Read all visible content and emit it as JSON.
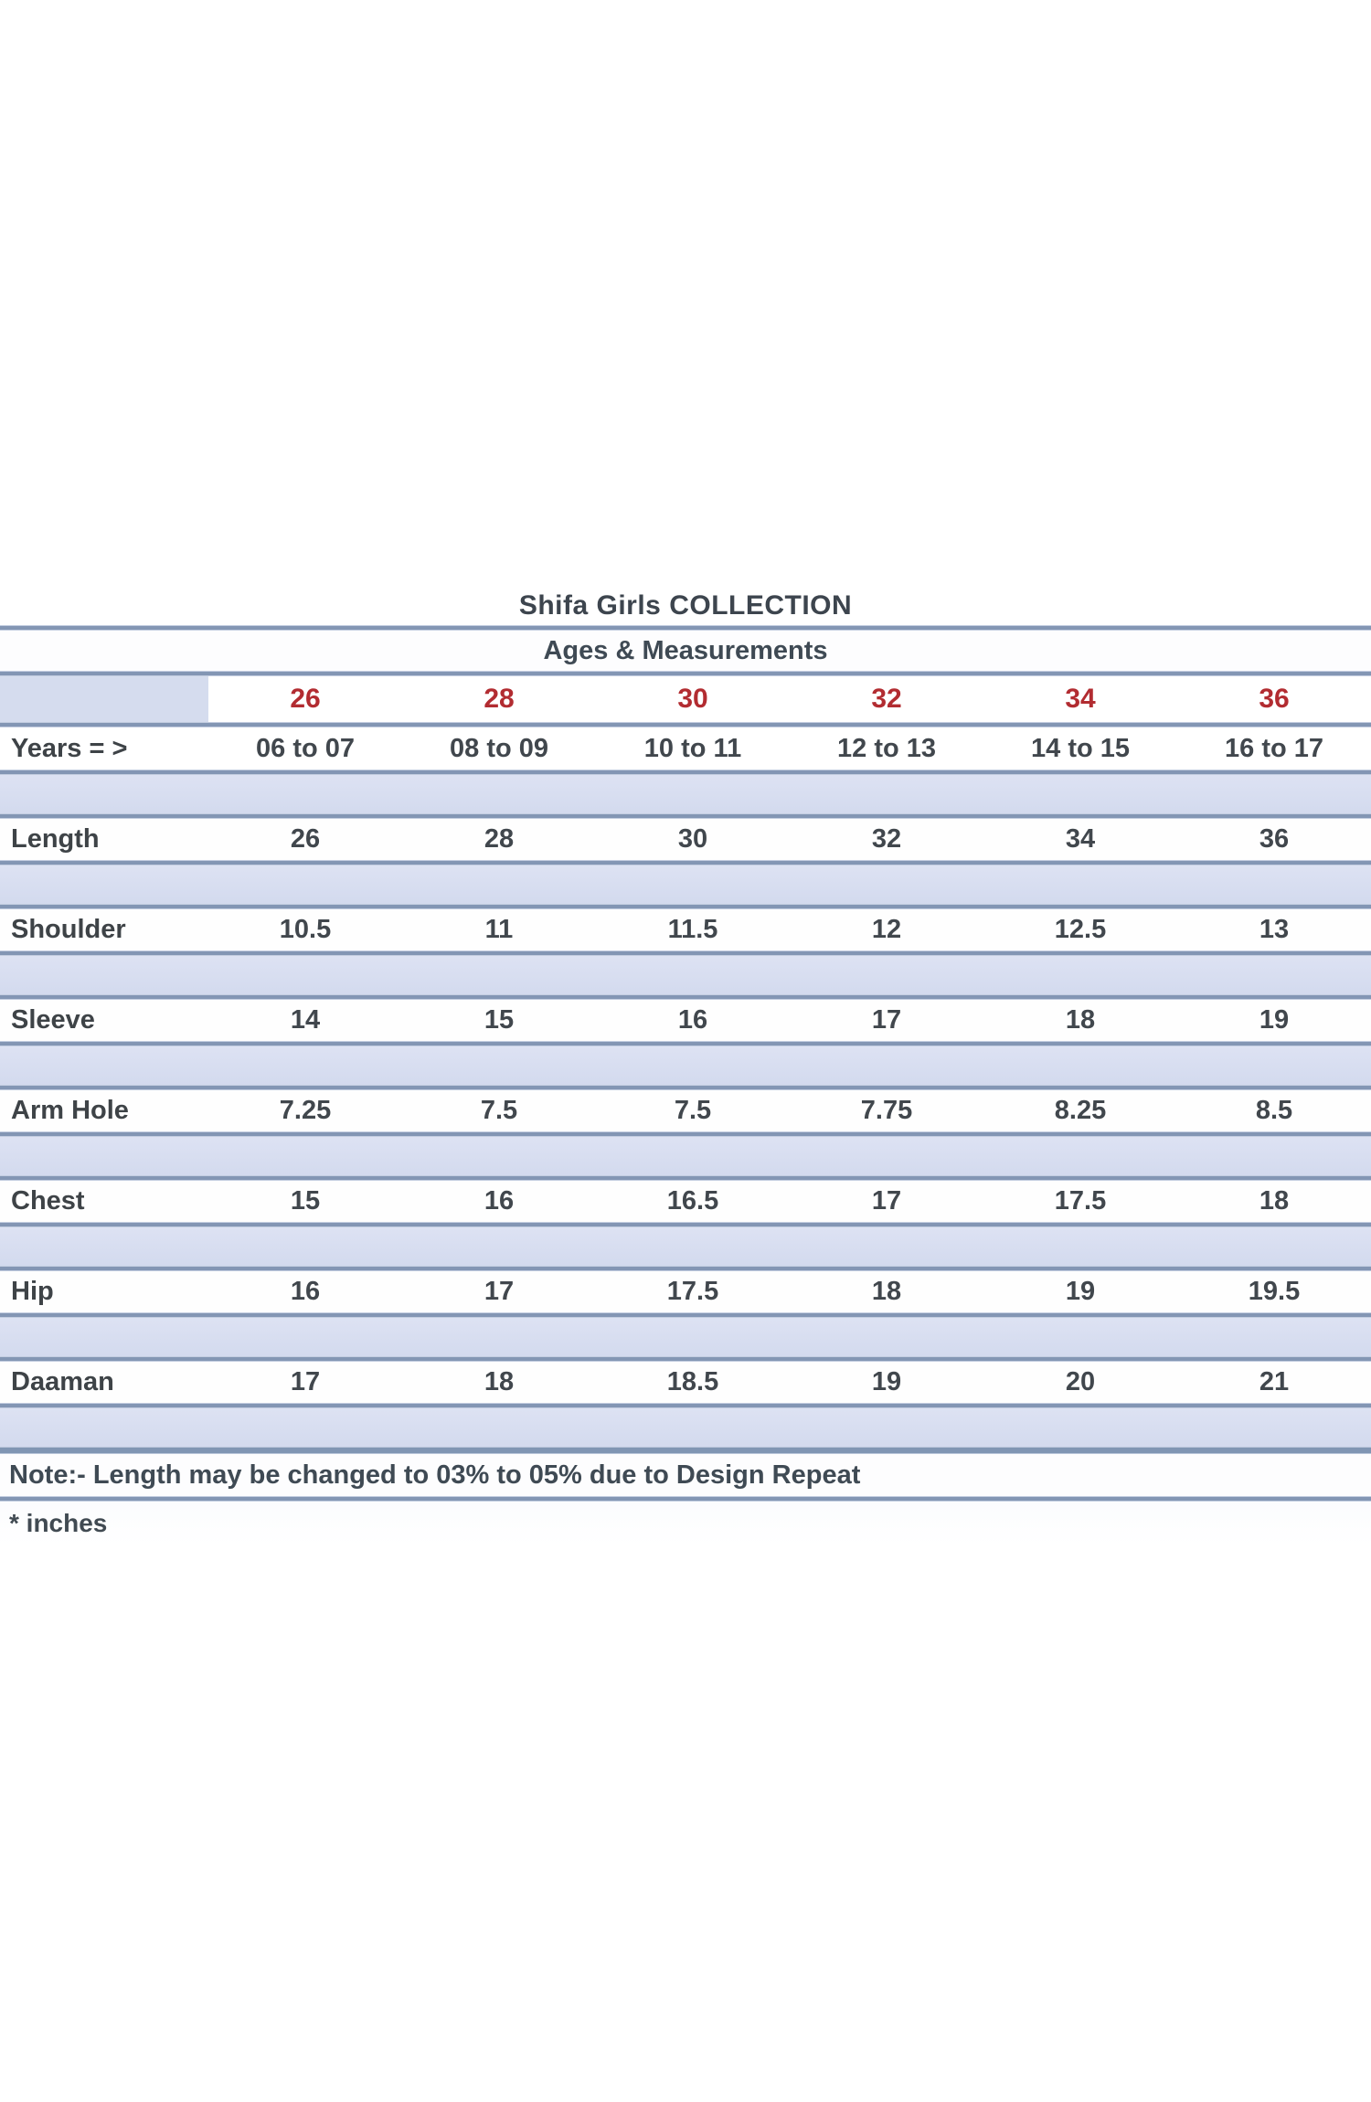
{
  "page": {
    "title": "Shifa Girls COLLECTION",
    "subtitle": "Ages & Measurements",
    "note": "Note:- Length may be changed to 03% to 05% due to Design Repeat",
    "unit_note": "* inches"
  },
  "table": {
    "size_header": {
      "label": "",
      "values": [
        "26",
        "28",
        "30",
        "32",
        "34",
        "36"
      ]
    },
    "years_header": {
      "label": "Years = >",
      "values": [
        "06 to 07",
        "08 to 09",
        "10 to 11",
        "12 to 13",
        "14 to 15",
        "16 to 17"
      ]
    },
    "rows": [
      {
        "label": "Length",
        "values": [
          "26",
          "28",
          "30",
          "32",
          "34",
          "36"
        ]
      },
      {
        "label": "Shoulder",
        "values": [
          "10.5",
          "11",
          "11.5",
          "12",
          "12.5",
          "13"
        ]
      },
      {
        "label": "Sleeve",
        "values": [
          "14",
          "15",
          "16",
          "17",
          "18",
          "19"
        ]
      },
      {
        "label": "Arm Hole",
        "values": [
          "7.25",
          "7.5",
          "7.5",
          "7.75",
          "8.25",
          "8.5"
        ]
      },
      {
        "label": "Chest",
        "values": [
          "15",
          "16",
          "16.5",
          "17",
          "17.5",
          "18"
        ]
      },
      {
        "label": "Hip",
        "values": [
          "16",
          "17",
          "17.5",
          "18",
          "19",
          "19.5"
        ]
      },
      {
        "label": "Daaman",
        "values": [
          "17",
          "18",
          "18.5",
          "19",
          "20",
          "21"
        ]
      }
    ]
  },
  "colors": {
    "size_accent_red": "#b22c31",
    "band_blue": "#d7ddef",
    "line_blue": "#8396b4",
    "text_dark": "#3e4750",
    "background": "#ffffff"
  }
}
